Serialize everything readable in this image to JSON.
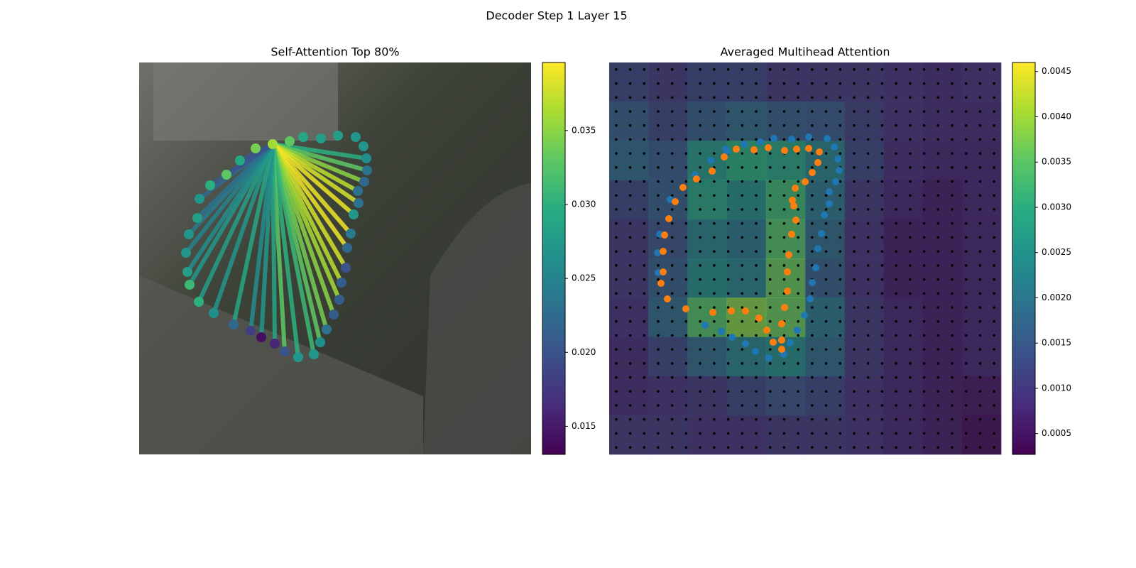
{
  "title": "Decoder Step 1 Layer 15",
  "chart_data": [
    {
      "type": "attention-graph",
      "title": "Self-Attention Top 80%",
      "colormap": "viridis",
      "xlim": [
        0,
        552
      ],
      "ylim": [
        552,
        0
      ],
      "source": 1,
      "x": [
        164,
        188,
        212,
        231,
        256,
        280,
        305,
        316,
        320,
        321,
        317,
        308,
        309,
        302,
        298,
        293,
        291,
        285,
        282,
        274,
        264,
        255,
        246,
        224,
        205,
        191,
        172,
        157,
        133,
        105,
        84,
        71,
        68,
        66,
        70,
        82,
        85,
        100,
        123,
        142
      ],
      "y": [
        121,
        115,
        111,
        105,
        107,
        103,
        105,
        118,
        135,
        152,
        168,
        181,
        198,
        214,
        241,
        261,
        289,
        310,
        334,
        355,
        376,
        394,
        411,
        415,
        407,
        396,
        387,
        378,
        369,
        353,
        337,
        313,
        295,
        268,
        242,
        219,
        192,
        173,
        158,
        138
      ],
      "values": [
        0.034,
        0.036,
        0.033,
        0.029,
        0.028,
        0.028,
        0.027,
        0.027,
        0.026,
        0.023,
        0.022,
        0.023,
        0.023,
        0.027,
        0.024,
        0.022,
        0.02,
        0.021,
        0.021,
        0.021,
        0.023,
        0.026,
        0.027,
        0.027,
        0.02,
        0.016,
        0.014,
        0.018,
        0.022,
        0.026,
        0.03,
        0.031,
        0.028,
        0.027,
        0.027,
        0.028,
        0.027,
        0.03,
        0.033,
        0.029
      ],
      "weights": [
        null,
        null,
        null,
        null,
        null,
        null,
        null,
        null,
        0.03,
        0.033,
        0.035,
        0.037,
        0.038,
        0.039,
        0.039,
        0.039,
        0.038,
        0.037,
        0.036,
        0.035,
        0.034,
        0.033,
        0.031,
        0.03,
        0.033,
        0.029,
        0.027,
        0.026,
        0.029,
        0.027,
        0.028,
        0.027,
        0.026,
        0.025,
        0.024,
        0.023,
        0.022,
        0.021,
        0.02,
        0.02
      ],
      "clim": [
        0.0131,
        0.0396
      ],
      "colorbar_ticks": [
        {
          "value": 0.015,
          "label": "0.015"
        },
        {
          "value": 0.02,
          "label": "0.020"
        },
        {
          "value": 0.025,
          "label": "0.025"
        },
        {
          "value": 0.03,
          "label": "0.030"
        },
        {
          "value": 0.035,
          "label": "0.035"
        }
      ]
    },
    {
      "type": "heatmap",
      "title": "Averaged Multihead Attention",
      "colormap": "viridis",
      "xlim": [
        0,
        552
      ],
      "ylim": [
        552,
        0
      ],
      "z": [
        [
          0.0012,
          0.001,
          0.0012,
          0.0012,
          0.001,
          0.001,
          0.001,
          0.0009,
          0.0008,
          0.0009
        ],
        [
          0.0016,
          0.0012,
          0.0016,
          0.0018,
          0.0016,
          0.0015,
          0.0011,
          0.0009,
          0.0008,
          0.0008
        ],
        [
          0.0018,
          0.0015,
          0.0026,
          0.003,
          0.0028,
          0.0022,
          0.0012,
          0.0008,
          0.0007,
          0.0007
        ],
        [
          0.0012,
          0.0016,
          0.0028,
          0.0024,
          0.0032,
          0.002,
          0.001,
          0.0007,
          0.0006,
          0.0007
        ],
        [
          0.001,
          0.0014,
          0.0022,
          0.002,
          0.0034,
          0.0018,
          0.0009,
          0.0006,
          0.0006,
          0.0007
        ],
        [
          0.001,
          0.0016,
          0.0024,
          0.0022,
          0.0036,
          0.0016,
          0.0009,
          0.0006,
          0.0006,
          0.0007
        ],
        [
          0.0009,
          0.0018,
          0.0034,
          0.0038,
          0.0036,
          0.002,
          0.001,
          0.0007,
          0.0006,
          0.0007
        ],
        [
          0.0008,
          0.0012,
          0.0018,
          0.0022,
          0.0024,
          0.0018,
          0.001,
          0.0007,
          0.0006,
          0.0007
        ],
        [
          0.0008,
          0.0009,
          0.001,
          0.0012,
          0.0014,
          0.0012,
          0.0009,
          0.0007,
          0.0006,
          0.0005
        ],
        [
          0.001,
          0.001,
          0.0009,
          0.0009,
          0.001,
          0.001,
          0.0009,
          0.0007,
          0.0006,
          0.0004
        ]
      ],
      "series": [
        {
          "color": "#1f77b4",
          "x": [
            190,
            213,
            232,
            257,
            281,
            307,
            317,
            322,
            324,
            319,
            310,
            310,
            303,
            299,
            294,
            291,
            286,
            283,
            275,
            265,
            255,
            246,
            225,
            206,
            192,
            173,
            158,
            135,
            143,
            164,
            121,
            86,
            71,
            68,
            69,
            166
          ],
          "y": [
            115,
            112,
            107,
            108,
            105,
            107,
            119,
            136,
            152,
            168,
            182,
            199,
            215,
            241,
            262,
            289,
            310,
            333,
            356,
            377,
            395,
            411,
            416,
            407,
            396,
            387,
            379,
            370,
            138,
            122,
            158,
            193,
            242,
            268,
            296,
            125
          ]
        },
        {
          "color": "#ff7f0e",
          "x": [
            179,
            204,
            224,
            247,
            264,
            281,
            296,
            294,
            286,
            276,
            262,
            258,
            260,
            263,
            257,
            253,
            251,
            251,
            247,
            243,
            222,
            211,
            192,
            172,
            146,
            108,
            82,
            73,
            76,
            76,
            78,
            84,
            93,
            104,
            123,
            145,
            162,
            243,
            231,
            243
          ],
          "y": [
            122,
            123,
            120,
            124,
            122,
            121,
            126,
            141,
            155,
            168,
            177,
            194,
            202,
            222,
            242,
            271,
            295,
            322,
            345,
            368,
            377,
            360,
            350,
            350,
            352,
            347,
            333,
            311,
            295,
            266,
            243,
            220,
            196,
            176,
            164,
            153,
            133,
            391,
            394,
            404
          ]
        }
      ],
      "clim": [
        0.00027,
        0.0046
      ],
      "colorbar_ticks": [
        {
          "value": 0.0005,
          "label": "0.0005"
        },
        {
          "value": 0.001,
          "label": "0.0010"
        },
        {
          "value": 0.0015,
          "label": "0.0015"
        },
        {
          "value": 0.002,
          "label": "0.0020"
        },
        {
          "value": 0.0025,
          "label": "0.0025"
        },
        {
          "value": 0.003,
          "label": "0.0030"
        },
        {
          "value": 0.0035,
          "label": "0.0035"
        },
        {
          "value": 0.004,
          "label": "0.0040"
        },
        {
          "value": 0.0045,
          "label": "0.0045"
        }
      ]
    }
  ]
}
